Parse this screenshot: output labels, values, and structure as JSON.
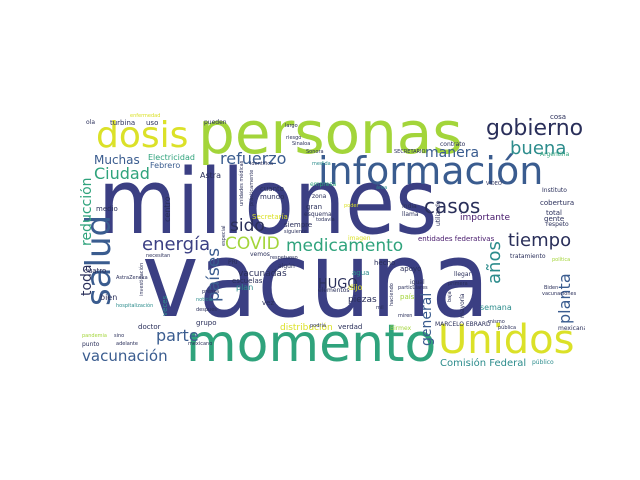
{
  "palette": {
    "dark_indigo": "#3b3f83",
    "blue": "#3a5c8f",
    "teal": "#2c8c8c",
    "green": "#2fa37c",
    "lime": "#a3d53a",
    "yellow": "#dbe128",
    "purple": "#46186b"
  },
  "words": [
    {
      "id": "vacuna",
      "text": "vacuna"
    },
    {
      "id": "millones",
      "text": "millones"
    },
    {
      "id": "personas",
      "text": "personas"
    },
    {
      "id": "momento",
      "text": "momento"
    },
    {
      "id": "informacion",
      "text": "información"
    },
    {
      "id": "unidos",
      "text": "Unidos"
    },
    {
      "id": "dosis",
      "text": "dosis"
    },
    {
      "id": "salud",
      "text": "salud"
    },
    {
      "id": "gobierno",
      "text": "gobierno"
    },
    {
      "id": "buena",
      "text": "buena"
    },
    {
      "id": "manera",
      "text": "manera"
    },
    {
      "id": "refuerzo",
      "text": "refuerzo"
    },
    {
      "id": "muchas",
      "text": "Muchas"
    },
    {
      "id": "ciudad",
      "text": "Ciudad"
    },
    {
      "id": "casos",
      "text": "casos"
    },
    {
      "id": "tiempo",
      "text": "tiempo"
    },
    {
      "id": "energia",
      "text": "energía"
    },
    {
      "id": "covid",
      "text": "COVID"
    },
    {
      "id": "medicamento",
      "text": "medicamento"
    },
    {
      "id": "paises",
      "text": "países"
    },
    {
      "id": "sido",
      "text": "sido"
    },
    {
      "id": "parte",
      "text": "parte"
    },
    {
      "id": "hugo",
      "text": "HUGO"
    },
    {
      "id": "vacunacion",
      "text": "vacunación"
    },
    {
      "id": "anos",
      "text": "años"
    },
    {
      "id": "planta",
      "text": "planta"
    },
    {
      "id": "general",
      "text": "general"
    },
    {
      "id": "reduccion",
      "text": "reducción"
    },
    {
      "id": "toda",
      "text": "toda"
    },
    {
      "id": "comision",
      "text": "Comisión Federal"
    },
    {
      "id": "importante",
      "text": "importante"
    },
    {
      "id": "entidades",
      "text": "entidades federativas"
    },
    {
      "id": "distribucion",
      "text": "distribución"
    },
    {
      "id": "vacunadas",
      "text": "vacunadas"
    },
    {
      "id": "piezas",
      "text": "piezas"
    },
    {
      "id": "electricidad",
      "text": "Electricidad"
    },
    {
      "id": "febrero",
      "text": "Febrero"
    },
    {
      "id": "cobertura",
      "text": "cobertura"
    },
    {
      "id": "semana",
      "text": "semana"
    },
    {
      "id": "astra",
      "text": "Astra"
    },
    {
      "id": "turbina",
      "text": "turbina"
    },
    {
      "id": "apoyo",
      "text": "apoyo"
    },
    {
      "id": "dijo",
      "text": "dijo"
    },
    {
      "id": "marcelo",
      "text": "MARCELO EBRARD"
    },
    {
      "id": "doctor",
      "text": "doctor"
    },
    {
      "id": "grupo",
      "text": "grupo"
    },
    {
      "id": "plan",
      "text": "plan"
    },
    {
      "id": "verdad",
      "text": "verdad"
    },
    {
      "id": "mexicana",
      "text": "mexicana"
    },
    {
      "id": "secretaria",
      "text": "Secretaría"
    },
    {
      "id": "cuatro",
      "text": "cuatro"
    },
    {
      "id": "hecho",
      "text": "hecho"
    },
    {
      "id": "gente",
      "text": "gente"
    },
    {
      "id": "total",
      "text": "total"
    },
    {
      "id": "instituto",
      "text": "Instituto"
    },
    {
      "id": "cosa",
      "text": "cosa"
    },
    {
      "id": "contrato",
      "text": "contrato"
    },
    {
      "id": "argentina",
      "text": "Argentina"
    },
    {
      "id": "secretario",
      "text": "SECRETARIO"
    },
    {
      "id": "sinaloa",
      "text": "Sinaloa"
    },
    {
      "id": "sonora",
      "text": "Sonora"
    },
    {
      "id": "riesgo",
      "text": "riesgo"
    },
    {
      "id": "largo",
      "text": "largo"
    },
    {
      "id": "mundo",
      "text": "mundo"
    },
    {
      "id": "cuanto",
      "text": "cuanto"
    },
    {
      "id": "siempre",
      "text": "siempre"
    },
    {
      "id": "esquema",
      "text": "esquema"
    },
    {
      "id": "gran",
      "text": "gran"
    },
    {
      "id": "empresa",
      "text": "empresa"
    },
    {
      "id": "zona",
      "text": "zona"
    },
    {
      "id": "medio",
      "text": "medio"
    },
    {
      "id": "centro",
      "text": "centro"
    },
    {
      "id": "bien",
      "text": "bien"
    },
    {
      "id": "veces",
      "text": "veces"
    },
    {
      "id": "pais",
      "text": "país"
    },
    {
      "id": "vez",
      "text": "vez"
    },
    {
      "id": "agua",
      "text": "agua"
    },
    {
      "id": "igual",
      "text": "igual"
    },
    {
      "id": "elementos",
      "text": "elementos"
    },
    {
      "id": "mayoria",
      "text": "mayoría"
    },
    {
      "id": "utilizado",
      "text": "utilizado"
    },
    {
      "id": "india",
      "text": "India"
    },
    {
      "id": "llama",
      "text": "llama"
    },
    {
      "id": "llegar",
      "text": "llegar"
    },
    {
      "id": "primera",
      "text": "primera"
    },
    {
      "id": "baja",
      "text": "baja"
    },
    {
      "id": "tratamiento",
      "text": "tratamiento"
    },
    {
      "id": "respeto",
      "text": "respeto"
    },
    {
      "id": "publico",
      "text": "público"
    },
    {
      "id": "publica",
      "text": "pública"
    },
    {
      "id": "birmex",
      "text": "Birmex"
    },
    {
      "id": "mismo",
      "text": "mismo"
    },
    {
      "id": "podria",
      "text": "podría"
    },
    {
      "id": "despues",
      "text": "después"
    },
    {
      "id": "noticia",
      "text": "noticia"
    },
    {
      "id": "hospitalizacion",
      "text": "hospitalización"
    },
    {
      "id": "pandemia",
      "text": "pandemia"
    },
    {
      "id": "punto",
      "text": "punto"
    },
    {
      "id": "adelante",
      "text": "adelante"
    },
    {
      "id": "pueden",
      "text": "pueden"
    },
    {
      "id": "ola",
      "text": "ola"
    },
    {
      "id": "uso",
      "text": "uso"
    },
    {
      "id": "escuelas",
      "text": "escuelas"
    },
    {
      "id": "imagen",
      "text": "imagen"
    },
    {
      "id": "algun",
      "text": "algún"
    },
    {
      "id": "vemos",
      "text": "vemos"
    },
    {
      "id": "necesitan",
      "text": "necesitan"
    },
    {
      "id": "respetuoso",
      "text": "respetuoso"
    },
    {
      "id": "medida",
      "text": "medida"
    },
    {
      "id": "mexicano",
      "text": "mexicano"
    },
    {
      "id": "pri",
      "text": "PRI"
    },
    {
      "id": "unidades",
      "text": "unidades médicas"
    },
    {
      "id": "investigacion",
      "text": "investigación"
    },
    {
      "id": "astrazeneca",
      "text": "AstraZeneca"
    },
    {
      "id": "video",
      "text": "VIDEO"
    },
    {
      "id": "biden",
      "text": "Biden"
    },
    {
      "id": "vacunaciones",
      "text": "vacunaciones"
    },
    {
      "id": "politica",
      "text": "política"
    },
    {
      "id": "sino",
      "text": "sino"
    },
    {
      "id": "mil",
      "text": "mil"
    },
    {
      "id": "particulares",
      "text": "particulares"
    },
    {
      "id": "miren",
      "text": "miren"
    },
    {
      "id": "poder",
      "text": "poder"
    },
    {
      "id": "identifica",
      "text": "identifica"
    },
    {
      "id": "enfermedad",
      "text": "enfermedad"
    },
    {
      "id": "siguiente",
      "text": "siguiente"
    },
    {
      "id": "prensa",
      "text": "prensa"
    },
    {
      "id": "haciendo",
      "text": "haciendo"
    },
    {
      "id": "todavia",
      "text": "todavía"
    },
    {
      "id": "practicamente",
      "text": "prácticamente"
    },
    {
      "id": "especial",
      "text": "especial"
    },
    {
      "id": "area",
      "text": "área"
    },
    {
      "id": "sido2",
      "text": "ahora"
    }
  ]
}
